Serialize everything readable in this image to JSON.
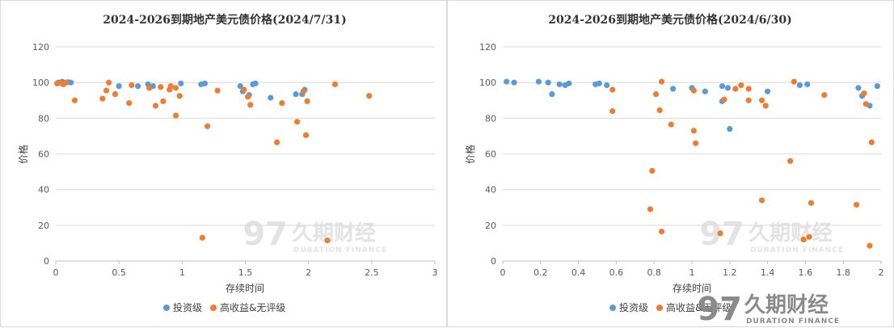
{
  "watermark": {
    "cn": "久期财经",
    "en": "DURATION FINANCE",
    "logo": "97"
  },
  "chart_data": [
    {
      "type": "scatter",
      "title": "2024-2026到期地产美元债价格(2024/7/31)",
      "xlabel": "存续时间",
      "ylabel": "价格",
      "xlim": [
        0,
        3
      ],
      "ylim": [
        0,
        120
      ],
      "xticks": [
        0,
        0.5,
        1,
        1.5,
        2,
        2.5,
        3
      ],
      "xtick_labels": [
        "0",
        "0.5",
        "1",
        "1.5",
        "2",
        "2.5",
        "3"
      ],
      "yticks": [
        0,
        20,
        40,
        60,
        80,
        100,
        120
      ],
      "ytick_labels": [
        "0",
        "20",
        "40",
        "60",
        "80",
        "100",
        "120"
      ],
      "series": [
        {
          "name": "投资级",
          "color": "#5b9bd5",
          "points": [
            [
              0.02,
              100
            ],
            [
              0.05,
              100.5
            ],
            [
              0.07,
              100
            ],
            [
              0.1,
              100.2
            ],
            [
              0.12,
              100
            ],
            [
              0.5,
              98
            ],
            [
              0.65,
              98
            ],
            [
              0.73,
              99
            ],
            [
              0.77,
              98
            ],
            [
              0.99,
              99.5
            ],
            [
              1.15,
              99
            ],
            [
              1.18,
              99.5
            ],
            [
              1.46,
              98
            ],
            [
              1.48,
              95
            ],
            [
              1.53,
              93
            ],
            [
              1.56,
              99
            ],
            [
              1.58,
              99.5
            ],
            [
              1.7,
              91.5
            ],
            [
              1.9,
              93.5
            ],
            [
              1.95,
              93.5
            ],
            [
              1.97,
              96
            ]
          ]
        },
        {
          "name": "高收益&无评级",
          "color": "#ed7d31",
          "points": [
            [
              0.01,
              99.5
            ],
            [
              0.03,
              99.8
            ],
            [
              0.06,
              99
            ],
            [
              0.08,
              100
            ],
            [
              0.15,
              90
            ],
            [
              0.37,
              91
            ],
            [
              0.4,
              95.5
            ],
            [
              0.42,
              100
            ],
            [
              0.47,
              93.5
            ],
            [
              0.58,
              88.5
            ],
            [
              0.6,
              98.5
            ],
            [
              0.74,
              97
            ],
            [
              0.79,
              87
            ],
            [
              0.83,
              97.5
            ],
            [
              0.85,
              89.5
            ],
            [
              0.9,
              96
            ],
            [
              0.91,
              98
            ],
            [
              0.95,
              97
            ],
            [
              0.95,
              81.5
            ],
            [
              0.98,
              92.5
            ],
            [
              1.16,
              13
            ],
            [
              1.2,
              75.5
            ],
            [
              1.28,
              95.5
            ],
            [
              1.49,
              96
            ],
            [
              1.52,
              92
            ],
            [
              1.54,
              87.5
            ],
            [
              1.75,
              66.5
            ],
            [
              1.79,
              88.5
            ],
            [
              1.91,
              78
            ],
            [
              1.96,
              95
            ],
            [
              1.98,
              70.5
            ],
            [
              1.99,
              89.5
            ],
            [
              2.15,
              11.5
            ],
            [
              2.21,
              99
            ],
            [
              2.48,
              92.5
            ]
          ]
        }
      ]
    },
    {
      "type": "scatter",
      "title": "2024-2026到期地产美元债价格(2024/6/30)",
      "xlabel": "存续时间",
      "ylabel": "价格",
      "xlim": [
        0,
        2
      ],
      "ylim": [
        0,
        120
      ],
      "xticks": [
        0,
        0.2,
        0.4,
        0.6,
        0.8,
        1,
        1.2,
        1.4,
        1.6,
        1.8,
        2
      ],
      "xtick_labels": [
        "0",
        "0.2",
        "0.4",
        "0.6",
        "0.8",
        "1",
        "1.2",
        "1.4",
        "1.6",
        "1.8",
        "2"
      ],
      "yticks": [
        0,
        20,
        40,
        60,
        80,
        100,
        120
      ],
      "ytick_labels": [
        "0",
        "20",
        "40",
        "60",
        "80",
        "100",
        "120"
      ],
      "series": [
        {
          "name": "投资级",
          "color": "#5b9bd5",
          "points": [
            [
              0.02,
              100.5
            ],
            [
              0.06,
              100
            ],
            [
              0.19,
              100.5
            ],
            [
              0.24,
              100
            ],
            [
              0.26,
              93.5
            ],
            [
              0.3,
              99
            ],
            [
              0.33,
              98.5
            ],
            [
              0.35,
              99.5
            ],
            [
              0.49,
              99
            ],
            [
              0.51,
              99.5
            ],
            [
              0.55,
              98.5
            ],
            [
              0.9,
              96.5
            ],
            [
              1,
              97
            ],
            [
              1.07,
              95
            ],
            [
              1.16,
              98
            ],
            [
              1.16,
              89.5
            ],
            [
              1.19,
              97
            ],
            [
              1.2,
              74
            ],
            [
              1.4,
              95
            ],
            [
              1.57,
              98.5
            ],
            [
              1.61,
              99
            ],
            [
              1.88,
              97
            ],
            [
              1.9,
              92.5
            ],
            [
              1.94,
              87
            ],
            [
              1.98,
              98
            ]
          ]
        },
        {
          "name": "高收益&无评级",
          "color": "#ed7d31",
          "points": [
            [
              0.58,
              96
            ],
            [
              0.58,
              84
            ],
            [
              0.78,
              29
            ],
            [
              0.79,
              50.5
            ],
            [
              0.81,
              93.5
            ],
            [
              0.83,
              84.5
            ],
            [
              0.84,
              100.5
            ],
            [
              0.84,
              16.5
            ],
            [
              0.89,
              76.5
            ],
            [
              1.01,
              73
            ],
            [
              1.01,
              95.5
            ],
            [
              1.02,
              66
            ],
            [
              1.15,
              15.5
            ],
            [
              1.17,
              90.5
            ],
            [
              1.23,
              96.5
            ],
            [
              1.26,
              98.5
            ],
            [
              1.3,
              90
            ],
            [
              1.3,
              96.5
            ],
            [
              1.37,
              90
            ],
            [
              1.37,
              34
            ],
            [
              1.39,
              87
            ],
            [
              1.52,
              56
            ],
            [
              1.54,
              100.5
            ],
            [
              1.59,
              12
            ],
            [
              1.62,
              13.5
            ],
            [
              1.63,
              32.5
            ],
            [
              1.7,
              93
            ],
            [
              1.87,
              31.5
            ],
            [
              1.91,
              94
            ],
            [
              1.92,
              88
            ],
            [
              1.94,
              8.5
            ],
            [
              1.95,
              66.5
            ]
          ]
        }
      ]
    }
  ]
}
